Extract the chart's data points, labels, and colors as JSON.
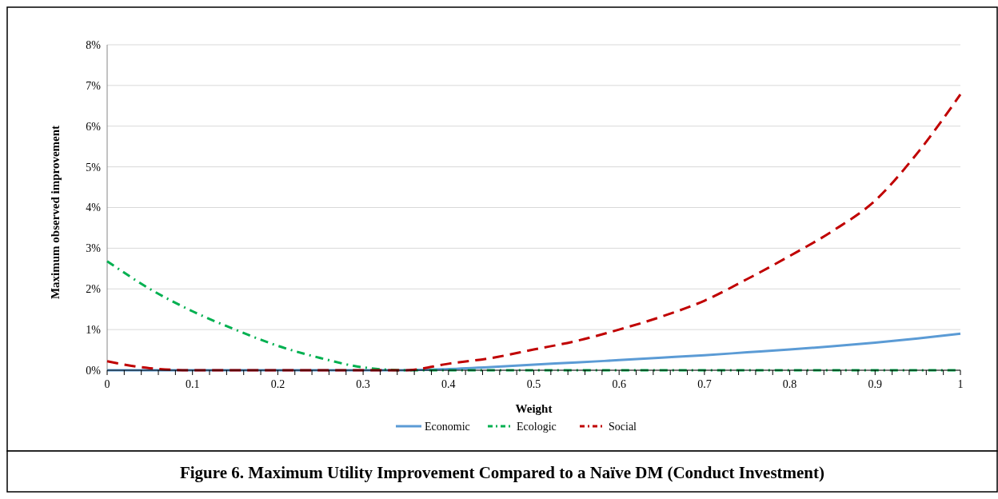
{
  "chart_data": {
    "type": "line",
    "xlabel": "Weight",
    "ylabel": "Maximum observed improvement",
    "annotations": [
      "Figure 6.  Maximum Utility Improvement Compared to a Naïve DM (Conduct Investment)"
    ],
    "x": [
      0,
      0.05,
      0.1,
      0.15,
      0.2,
      0.25,
      0.3,
      0.35,
      0.4,
      0.45,
      0.5,
      0.55,
      0.6,
      0.65,
      0.7,
      0.75,
      0.8,
      0.85,
      0.9,
      0.95,
      1
    ],
    "series": [
      {
        "name": "Economic",
        "color": "#5b9bd5",
        "line_style": "solid",
        "values": [
          0,
          0,
          0,
          0,
          0,
          0,
          0,
          0,
          0.03,
          0.08,
          0.14,
          0.19,
          0.25,
          0.31,
          0.37,
          0.44,
          0.51,
          0.59,
          0.68,
          0.78,
          0.9
        ]
      },
      {
        "name": "Ecologic",
        "color": "#00b050",
        "line_style": "dashdot",
        "values": [
          2.68,
          2.0,
          1.45,
          1.0,
          0.6,
          0.3,
          0.07,
          0,
          0,
          0,
          0,
          0,
          0,
          0,
          0,
          0,
          0,
          0,
          0,
          0,
          0
        ]
      },
      {
        "name": "Social",
        "color": "#c00000",
        "line_style": "dashed",
        "values": [
          0.22,
          0.05,
          0,
          0,
          0,
          0,
          0,
          0,
          0.16,
          0.3,
          0.51,
          0.72,
          1.0,
          1.32,
          1.71,
          2.24,
          2.81,
          3.42,
          4.17,
          5.35,
          6.78
        ]
      }
    ],
    "xlim": [
      0,
      1
    ],
    "xticks": [
      0,
      {
        "value": 0.02,
        "label": null
      },
      {
        "value": 0.04,
        "label": null
      },
      {
        "value": 0.06,
        "label": null
      },
      {
        "value": 0.08,
        "label": null
      },
      0.1,
      {
        "value": 0.12,
        "label": null
      },
      {
        "value": 0.14,
        "label": null
      },
      {
        "value": 0.16,
        "label": null
      },
      {
        "value": 0.18,
        "label": null
      },
      0.2,
      {
        "value": 0.22,
        "label": null
      },
      {
        "value": 0.24,
        "label": null
      },
      {
        "value": 0.26,
        "label": null
      },
      {
        "value": 0.28,
        "label": null
      },
      0.3,
      {
        "value": 0.32,
        "label": null
      },
      {
        "value": 0.34,
        "label": null
      },
      {
        "value": 0.36,
        "label": null
      },
      {
        "value": 0.38,
        "label": null
      },
      0.4,
      {
        "value": 0.42,
        "label": null
      },
      {
        "value": 0.44,
        "label": null
      },
      {
        "value": 0.46,
        "label": null
      },
      {
        "value": 0.48,
        "label": null
      },
      0.5,
      {
        "value": 0.52,
        "label": null
      },
      {
        "value": 0.54,
        "label": null
      },
      {
        "value": 0.56,
        "label": null
      },
      {
        "value": 0.58,
        "label": null
      },
      0.6,
      {
        "value": 0.62,
        "label": null
      },
      {
        "value": 0.64,
        "label": null
      },
      {
        "value": 0.66,
        "label": null
      },
      {
        "value": 0.68,
        "label": null
      },
      0.7,
      {
        "value": 0.72,
        "label": null
      },
      {
        "value": 0.74,
        "label": null
      },
      {
        "value": 0.76,
        "label": null
      },
      {
        "value": 0.78,
        "label": null
      },
      0.8,
      {
        "value": 0.82,
        "label": null
      },
      {
        "value": 0.84,
        "label": null
      },
      {
        "value": 0.86,
        "label": null
      },
      {
        "value": 0.88,
        "label": null
      },
      0.9,
      {
        "value": 0.92,
        "label": null
      },
      {
        "value": 0.94,
        "label": null
      },
      {
        "value": 0.96,
        "label": null
      },
      {
        "value": 0.98,
        "label": null
      },
      1
    ],
    "ylim": [
      0,
      8
    ],
    "yticks": [
      {
        "value": 0,
        "label": "0%"
      },
      {
        "value": 1,
        "label": "1%"
      },
      {
        "value": 2,
        "label": "2%"
      },
      {
        "value": 3,
        "label": "3%"
      },
      {
        "value": 4,
        "label": "4%"
      },
      {
        "value": 5,
        "label": "5%"
      },
      {
        "value": 6,
        "label": "6%"
      },
      {
        "value": 7,
        "label": "7%"
      },
      {
        "value": 8,
        "label": "8%"
      }
    ],
    "grid": "y",
    "legend": "bottom",
    "marker": "none"
  }
}
